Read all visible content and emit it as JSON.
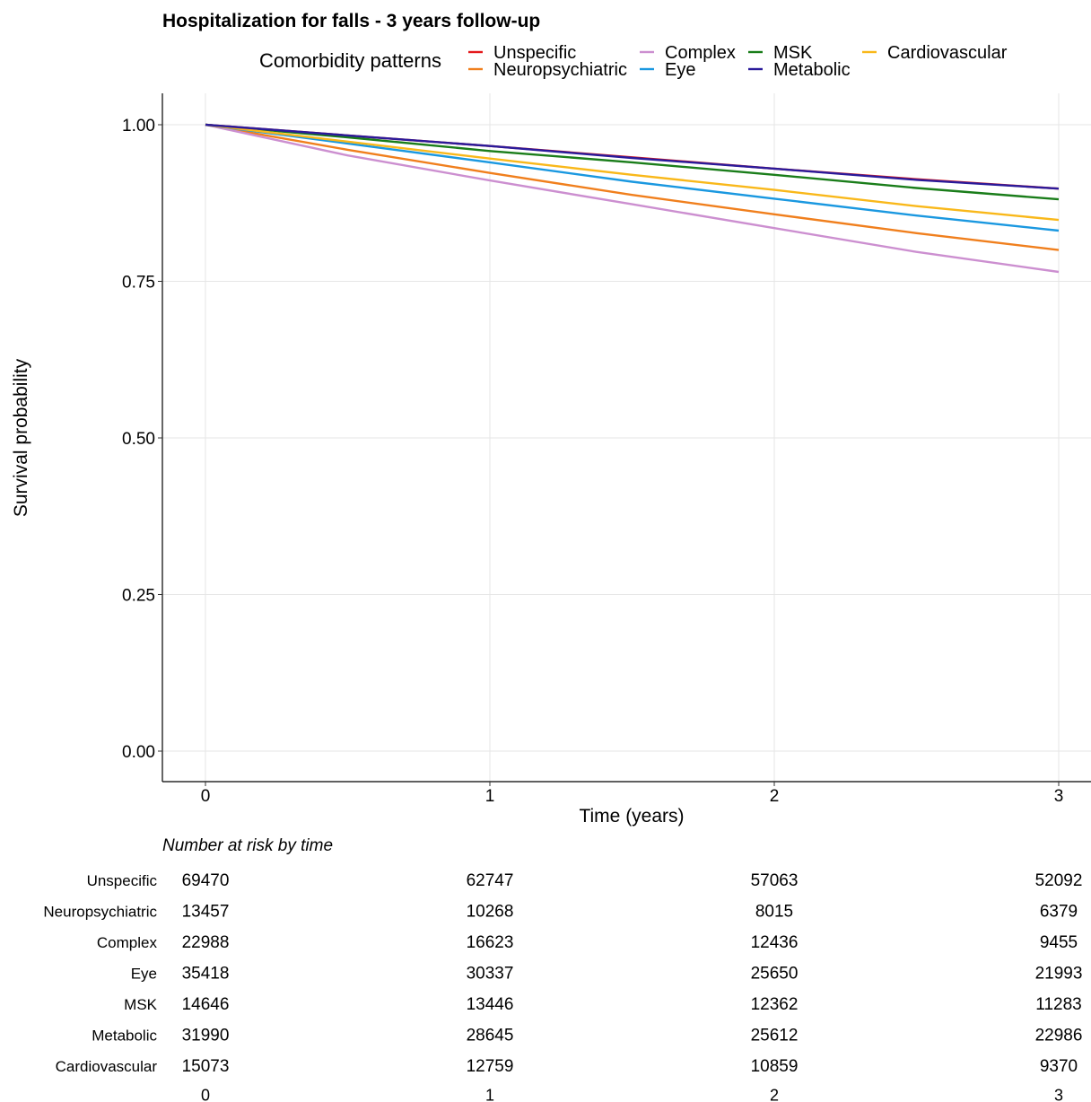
{
  "chart_data": {
    "type": "line",
    "title": "Hospitalization for falls - 3 years follow-up",
    "xlabel": "Time (years)",
    "ylabel": "Survival probability",
    "xlim": [
      0,
      3
    ],
    "ylim": [
      0,
      1
    ],
    "x_ticks": [
      "0",
      "1",
      "2",
      "3"
    ],
    "y_ticks": [
      "0.00",
      "0.25",
      "0.50",
      "0.75",
      "1.00"
    ],
    "grid": true,
    "legend": {
      "title": "Comorbidity patterns",
      "placement": "top"
    },
    "x": [
      0,
      0.5,
      1,
      1.5,
      2,
      2.5,
      3
    ],
    "series": [
      {
        "name": "Unspecific",
        "color": "#e41a1c",
        "values": [
          1.0,
          0.983,
          0.966,
          0.948,
          0.93,
          0.913,
          0.898
        ]
      },
      {
        "name": "Neuropsychiatric",
        "color": "#f07f1d",
        "values": [
          1.0,
          0.96,
          0.923,
          0.888,
          0.857,
          0.827,
          0.8
        ]
      },
      {
        "name": "Complex",
        "color": "#cc8fd0",
        "values": [
          1.0,
          0.951,
          0.911,
          0.873,
          0.835,
          0.797,
          0.765
        ]
      },
      {
        "name": "Eye",
        "color": "#1a98e0",
        "values": [
          1.0,
          0.97,
          0.94,
          0.909,
          0.882,
          0.855,
          0.831
        ]
      },
      {
        "name": "MSK",
        "color": "#1a7d1a",
        "values": [
          1.0,
          0.98,
          0.958,
          0.94,
          0.92,
          0.899,
          0.881
        ]
      },
      {
        "name": "Metabolic",
        "color": "#2a1a9a",
        "values": [
          1.0,
          0.983,
          0.966,
          0.947,
          0.93,
          0.912,
          0.898
        ]
      },
      {
        "name": "Cardiovascular",
        "color": "#f9b81a",
        "values": [
          1.0,
          0.973,
          0.946,
          0.92,
          0.896,
          0.87,
          0.848
        ]
      }
    ],
    "risk_table": {
      "caption": "Number at risk by time",
      "times": [
        "0",
        "1",
        "2",
        "3"
      ],
      "rows": [
        {
          "label": "Unspecific",
          "values": [
            "69470",
            "62747",
            "57063",
            "52092"
          ]
        },
        {
          "label": "Neuropsychiatric",
          "values": [
            "13457",
            "10268",
            "8015",
            "6379"
          ]
        },
        {
          "label": "Complex",
          "values": [
            "22988",
            "16623",
            "12436",
            "9455"
          ]
        },
        {
          "label": "Eye",
          "values": [
            "35418",
            "30337",
            "25650",
            "21993"
          ]
        },
        {
          "label": "MSK",
          "values": [
            "14646",
            "13446",
            "12362",
            "11283"
          ]
        },
        {
          "label": "Metabolic",
          "values": [
            "31990",
            "28645",
            "25612",
            "22986"
          ]
        },
        {
          "label": "Cardiovascular",
          "values": [
            "15073",
            "12759",
            "10859",
            "9370"
          ]
        }
      ]
    }
  }
}
